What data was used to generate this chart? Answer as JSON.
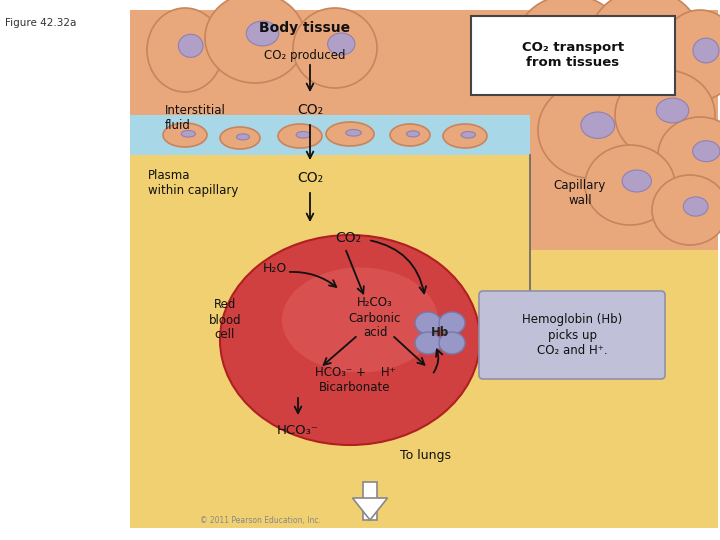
{
  "figure_label": "Figure 42.32a",
  "title_body_tissue": "Body tissue",
  "title_co2_transport": "CO₂ transport\nfrom tissues",
  "label_co2_produced": "CO₂ produced",
  "label_interstitial": "Interstitial\nfluid",
  "label_co2_interstitial": "CO₂",
  "label_plasma": "Plasma\nwithin capillary",
  "label_co2_plasma": "CO₂",
  "label_capillary_wall": "Capillary\nwall",
  "label_co2_rbc": "CO₂",
  "label_h2o": "H₂O",
  "label_h2co3": "H₂CO₃\nCarbonic\nacid",
  "label_hb": "Hb",
  "label_hemoglobin": "Hemoglobin (Hb)\npicks up\nCO₂ and H⁺.",
  "label_hco3_bicarbonate": "HCO₃⁻ +    H⁺\nBicarbonate",
  "label_rbc": "Red\nblood\ncell",
  "label_hco3_bottom": "HCO₃⁻",
  "label_to_lungs": "To lungs",
  "color_tissue": "#E8A87C",
  "color_tissue_edge": "#C8845C",
  "color_fluid": "#A8D8E8",
  "color_plasma": "#F0D070",
  "color_rbc": "#D04040",
  "color_rbc_light": "#E06060",
  "color_hb": "#9898C8",
  "color_hb_edge": "#7878A8",
  "color_box_bg": "#C0C0D8",
  "color_box_edge": "#9090A8",
  "color_nucleus": "#B0A0C8",
  "color_nucleus_edge": "#9080B0",
  "bg_color": "#FFFFFF"
}
